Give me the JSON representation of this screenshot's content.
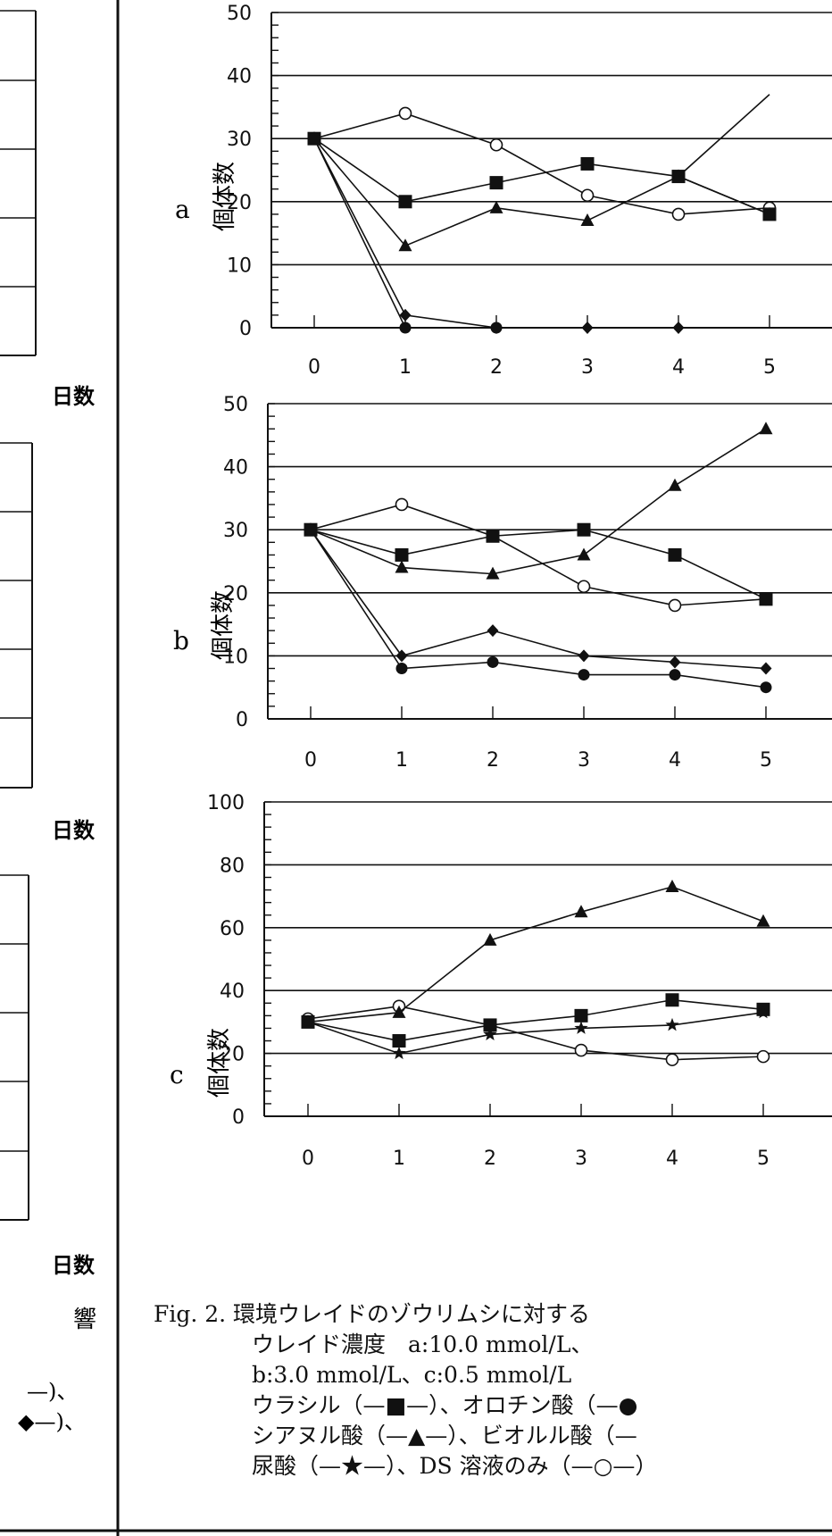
{
  "left_fragments": {
    "xlabel_1": "日数",
    "xlabel_2": "日数",
    "xlabel_3": "日数",
    "text_hibiki": "響",
    "text_line1": "—)、",
    "text_line2": "◆—)、"
  },
  "chart_data": [
    {
      "type": "line",
      "panel": "a",
      "ylabel": "個体数",
      "ylim": [
        0,
        50
      ],
      "ytick_step": 10,
      "x": [
        0,
        1,
        2,
        3,
        4,
        5
      ],
      "series": [
        {
          "marker": "circle-open",
          "values": [
            30,
            34,
            29,
            21,
            18,
            19
          ]
        },
        {
          "marker": "square",
          "values": [
            30,
            20,
            23,
            26,
            24,
            18
          ]
        },
        {
          "marker": "triangle",
          "values": [
            30,
            13,
            19,
            17,
            24,
            18
          ]
        },
        {
          "marker": "diamond",
          "values": [
            30,
            2,
            0,
            0,
            0,
            null
          ]
        },
        {
          "marker": "circle",
          "values": [
            30,
            0,
            0,
            null,
            null,
            null
          ]
        },
        {
          "marker": "none",
          "values": [
            null,
            null,
            null,
            null,
            24,
            37
          ]
        }
      ]
    },
    {
      "type": "line",
      "panel": "b",
      "ylabel": "個体数",
      "ylim": [
        0,
        50
      ],
      "ytick_step": 10,
      "x": [
        0,
        1,
        2,
        3,
        4,
        5
      ],
      "series": [
        {
          "marker": "circle-open",
          "values": [
            30,
            34,
            29,
            21,
            18,
            19
          ]
        },
        {
          "marker": "square",
          "values": [
            30,
            26,
            29,
            30,
            26,
            19
          ]
        },
        {
          "marker": "triangle",
          "values": [
            30,
            24,
            23,
            26,
            37,
            46
          ]
        },
        {
          "marker": "diamond",
          "values": [
            30,
            10,
            14,
            10,
            9,
            8
          ]
        },
        {
          "marker": "circle",
          "values": [
            30,
            8,
            9,
            7,
            7,
            5
          ]
        }
      ]
    },
    {
      "type": "line",
      "panel": "c",
      "ylabel": "個体数",
      "ylim": [
        0,
        100
      ],
      "ytick_step": 20,
      "x": [
        0,
        1,
        2,
        3,
        4,
        5
      ],
      "series": [
        {
          "marker": "circle-open",
          "values": [
            31,
            35,
            29,
            21,
            18,
            19
          ]
        },
        {
          "marker": "square",
          "values": [
            30,
            24,
            29,
            32,
            37,
            34
          ]
        },
        {
          "marker": "triangle",
          "values": [
            30,
            33,
            56,
            65,
            73,
            62
          ]
        },
        {
          "marker": "star",
          "values": [
            30,
            20,
            26,
            28,
            29,
            33
          ]
        }
      ]
    }
  ],
  "caption": {
    "line1": "Fig.  2.  環境ウレイドのゾウリムシに対する",
    "line2": "ウレイド濃度　a:10.0 mmol/L、",
    "line3": "b:3.0 mmol/L、c:0.5 mmol/L",
    "line4": "ウラシル（—■—）、オロチン酸（—●",
    "line5": "シアヌル酸（—▲—）、ビオルル酸（—",
    "line6": "尿酸（—★—）、DS 溶液のみ（—○—）"
  }
}
